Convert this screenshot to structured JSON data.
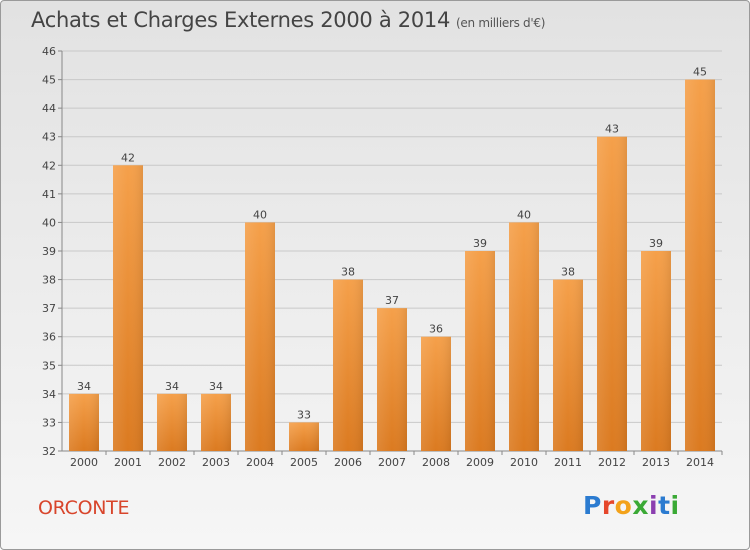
{
  "chart_data": {
    "type": "bar",
    "title": "Achats et Charges Externes 2000 à 2014",
    "subtitle": "(en milliers d'€)",
    "categories": [
      "2000",
      "2001",
      "2002",
      "2003",
      "2004",
      "2005",
      "2006",
      "2007",
      "2008",
      "2009",
      "2010",
      "2011",
      "2012",
      "2013",
      "2014"
    ],
    "values": [
      34,
      42,
      34,
      34,
      40,
      33,
      38,
      37,
      36,
      39,
      40,
      38,
      43,
      39,
      45
    ],
    "ylim": [
      32,
      46
    ],
    "yticks": [
      32,
      33,
      34,
      35,
      36,
      37,
      38,
      39,
      40,
      41,
      42,
      43,
      44,
      45,
      46
    ],
    "grid": true,
    "bar_color": "#f0953a",
    "bar_color_dark": "#d97a1f"
  },
  "commune": "ORCONTE",
  "logo": "Proxiti"
}
